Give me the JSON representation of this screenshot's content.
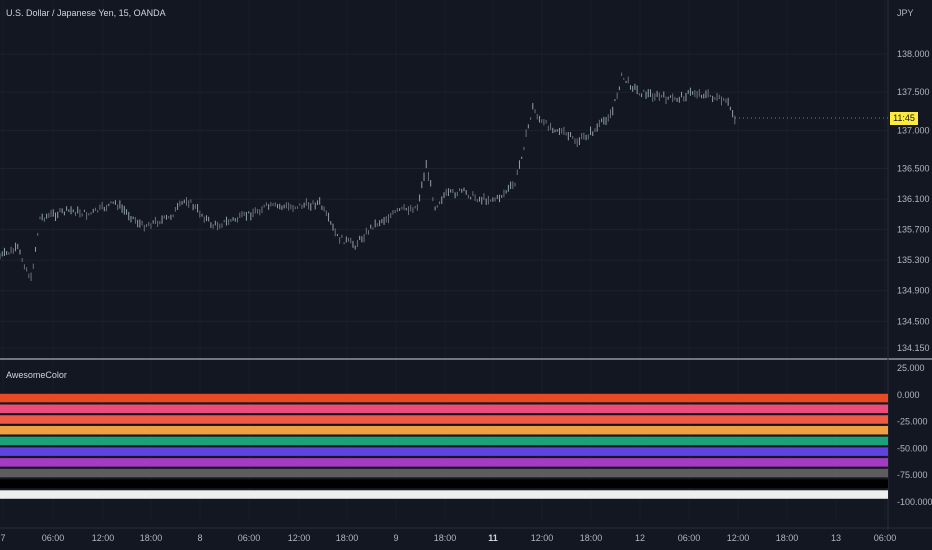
{
  "symbol_title": "U.S. Dollar / Japanese Yen, 15, OANDA",
  "currency": "JPY",
  "price_tag": "11:45",
  "indicator_name": "AwesomeColor",
  "chart_data": [
    {
      "type": "candlestick",
      "title": "U.S. Dollar / Japanese Yen, 15, OANDA",
      "y_axis_ticks": [
        "138.000",
        "137.500",
        "137.000",
        "136.500",
        "136.100",
        "135.700",
        "135.300",
        "134.900",
        "134.500",
        "134.150"
      ],
      "y_ticks_values": [
        138.0,
        137.5,
        137.0,
        136.5,
        136.1,
        135.7,
        135.3,
        134.9,
        134.5,
        134.15
      ],
      "x_axis_ticks": [
        "7",
        "06:00",
        "12:00",
        "18:00",
        "8",
        "06:00",
        "12:00",
        "18:00",
        "9",
        "18:00",
        "11",
        "12:00",
        "18:00",
        "12",
        "06:00",
        "12:00",
        "18:00",
        "13",
        "06:00"
      ],
      "bold_ticks": [
        "11"
      ],
      "price_path": [
        [
          0,
          135.35
        ],
        [
          0.02,
          135.45
        ],
        [
          0.035,
          135.05
        ],
        [
          0.045,
          135.85
        ],
        [
          0.06,
          135.9
        ],
        [
          0.08,
          135.95
        ],
        [
          0.1,
          135.9
        ],
        [
          0.13,
          136.05
        ],
        [
          0.16,
          135.75
        ],
        [
          0.19,
          135.85
        ],
        [
          0.21,
          136.1
        ],
        [
          0.24,
          135.75
        ],
        [
          0.27,
          135.85
        ],
        [
          0.3,
          136.0
        ],
        [
          0.33,
          136.0
        ],
        [
          0.36,
          136.05
        ],
        [
          0.38,
          135.6
        ],
        [
          0.4,
          135.5
        ],
        [
          0.42,
          135.75
        ],
        [
          0.45,
          135.95
        ],
        [
          0.47,
          136.0
        ],
        [
          0.48,
          136.55
        ],
        [
          0.49,
          136.0
        ],
        [
          0.5,
          136.15
        ],
        [
          0.52,
          136.2
        ],
        [
          0.54,
          136.1
        ],
        [
          0.56,
          136.1
        ],
        [
          0.58,
          136.3
        ],
        [
          0.6,
          137.3
        ],
        [
          0.61,
          137.1
        ],
        [
          0.63,
          137.0
        ],
        [
          0.65,
          136.85
        ],
        [
          0.67,
          137.0
        ],
        [
          0.69,
          137.25
        ],
        [
          0.7,
          137.7
        ],
        [
          0.72,
          137.5
        ],
        [
          0.74,
          137.45
        ],
        [
          0.76,
          137.4
        ],
        [
          0.78,
          137.5
        ],
        [
          0.8,
          137.45
        ],
        [
          0.82,
          137.35
        ],
        [
          0.83,
          137.1
        ]
      ]
    },
    {
      "type": "bar",
      "title": "AwesomeColor",
      "y_axis_ticks": [
        "25.000",
        "0.000",
        "-25.000",
        "-50.000",
        "-75.000",
        "-100.000"
      ],
      "y_ticks_values": [
        25,
        0,
        -25,
        -50,
        -75,
        -100
      ],
      "bands": [
        {
          "color": "#e84b24",
          "value": 0
        },
        {
          "color": "#ec4c7b",
          "value": -10
        },
        {
          "color": "#ef5a45",
          "value": -20
        },
        {
          "color": "#f0a042",
          "value": -30
        },
        {
          "color": "#1aa37a",
          "value": -40
        },
        {
          "color": "#5e43e0",
          "value": -50
        },
        {
          "color": "#a53bc2",
          "value": -60
        },
        {
          "color": "#5d5d5d",
          "value": -70
        },
        {
          "color": "#000000",
          "value": -80
        },
        {
          "color": "#eeeeee",
          "value": -90
        }
      ]
    }
  ]
}
